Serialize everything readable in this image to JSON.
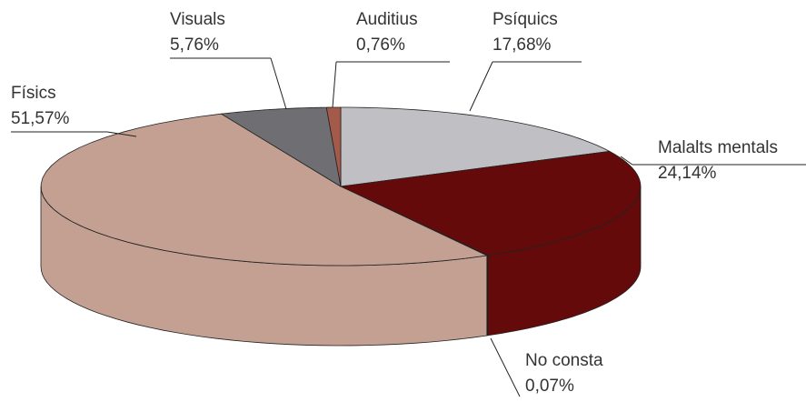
{
  "chart_data": {
    "type": "pie3d",
    "categories": [
      "Psíquics",
      "Malalts mentals",
      "No consta",
      "Físics",
      "Visuals",
      "Auditius"
    ],
    "values": [
      17.68,
      24.14,
      0.07,
      51.57,
      5.76,
      0.76
    ],
    "value_labels": [
      "17,68%",
      "24,14%",
      "0,07%",
      "51,57%",
      "5,76%",
      "0,76%"
    ],
    "colors": [
      "#c0c0c4",
      "#650a0a",
      "#3a0606",
      "#c4a092",
      "#6f6f73",
      "#a35a4a"
    ]
  }
}
